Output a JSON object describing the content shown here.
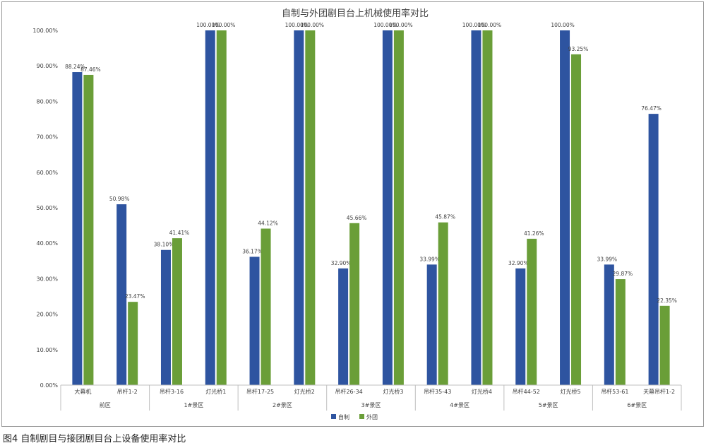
{
  "chart_data": {
    "type": "bar",
    "title": "自制与外团剧目台上机械使用率对比",
    "xlabel": "",
    "ylabel": "",
    "ylim": [
      0,
      100
    ],
    "y_ticks": [
      0,
      10,
      20,
      30,
      40,
      50,
      60,
      70,
      80,
      90,
      100
    ],
    "y_tick_labels": [
      "0.00%",
      "10.00%",
      "20.00%",
      "30.00%",
      "40.00%",
      "50.00%",
      "60.00%",
      "70.00%",
      "80.00%",
      "90.00%",
      "100.00%"
    ],
    "grid": false,
    "legend_position": "bottom",
    "categories": [
      "大幕机",
      "吊杆1-2",
      "吊杆3-16",
      "灯光桥1",
      "吊杆17-25",
      "灯光桥2",
      "吊杆26-34",
      "灯光桥3",
      "吊杆35-43",
      "灯光桥4",
      "吊杆44-52",
      "灯光桥5",
      "吊杆53-61",
      "天幕吊杆1-2"
    ],
    "groups": [
      {
        "label": "前区",
        "categories": 2
      },
      {
        "label": "1#景区",
        "categories": 2
      },
      {
        "label": "2#景区",
        "categories": 2
      },
      {
        "label": "3#景区",
        "categories": 2
      },
      {
        "label": "4#景区",
        "categories": 2
      },
      {
        "label": "5#景区",
        "categories": 2
      },
      {
        "label": "6#景区",
        "categories": 2
      }
    ],
    "series": [
      {
        "name": "自制",
        "color": "#2e54a0",
        "values": [
          88.24,
          50.98,
          38.1,
          100.0,
          36.17,
          100.0,
          32.9,
          100.0,
          33.99,
          100.0,
          32.9,
          100.0,
          33.99,
          76.47
        ],
        "labels": [
          "88.24%",
          "50.98%",
          "38.10%",
          "100.00%",
          "36.17%",
          "100.00%",
          "32.90%",
          "100.00%",
          "33.99%",
          "100.00%",
          "32.90%",
          "100.00%",
          "33.99%",
          "76.47%"
        ]
      },
      {
        "name": "外团",
        "color": "#6a9e38",
        "values": [
          87.46,
          23.47,
          41.41,
          100.0,
          44.12,
          100.0,
          45.66,
          100.0,
          45.87,
          100.0,
          41.26,
          93.25,
          29.87,
          22.35
        ],
        "labels": [
          "87.46%",
          "23.47%",
          "41.41%",
          "100.00%",
          "44.12%",
          "100.00%",
          "45.66%",
          "100.00%",
          "45.87%",
          "100.00%",
          "41.26%",
          "93.25%",
          "29.87%",
          "22.35%"
        ]
      }
    ]
  },
  "caption": "图4  自制剧目与接团剧目台上设备使用率对比"
}
